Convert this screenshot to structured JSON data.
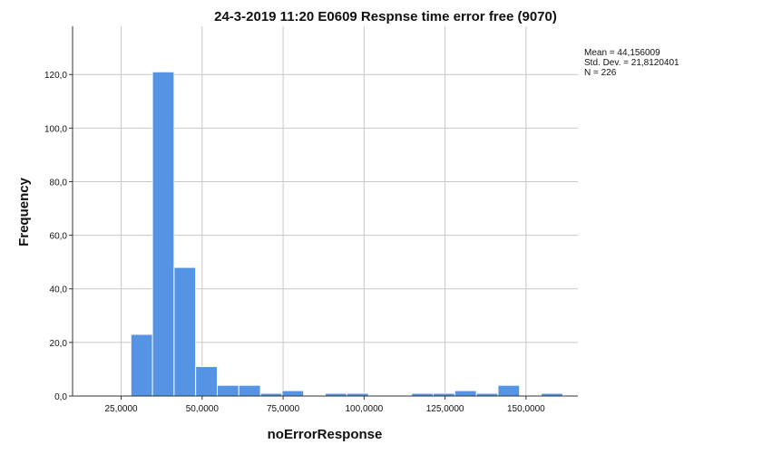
{
  "chart_data": {
    "type": "bar",
    "title": "24-3-2019 11:20 E0609 Respnse time error free (9070)",
    "xlabel": "noErrorResponse",
    "ylabel": "Frequency",
    "colors": {
      "bar": "#5593e4",
      "grid": "#c8c8c8"
    },
    "xlim": [
      10000,
      166000
    ],
    "ylim": [
      0,
      138
    ],
    "x_ticks": [
      25000,
      50000,
      75000,
      100000,
      125000,
      150000
    ],
    "x_tick_labels": [
      "25,0000",
      "50,0000",
      "75,0000",
      "100,0000",
      "125,0000",
      "150,0000"
    ],
    "y_ticks": [
      0,
      20,
      40,
      60,
      80,
      100,
      120
    ],
    "y_tick_labels": [
      "0,0",
      "20,0",
      "40,0",
      "60,0",
      "80,0",
      "100,0",
      "120,0"
    ],
    "bins": [
      {
        "start": 28000,
        "end": 34666,
        "value": 23
      },
      {
        "start": 34666,
        "end": 41333,
        "value": 121
      },
      {
        "start": 41333,
        "end": 48000,
        "value": 48
      },
      {
        "start": 48000,
        "end": 54666,
        "value": 11
      },
      {
        "start": 54666,
        "end": 61333,
        "value": 4
      },
      {
        "start": 61333,
        "end": 68000,
        "value": 4
      },
      {
        "start": 68000,
        "end": 74666,
        "value": 1
      },
      {
        "start": 74666,
        "end": 81333,
        "value": 2
      },
      {
        "start": 81333,
        "end": 88000,
        "value": 0
      },
      {
        "start": 88000,
        "end": 94666,
        "value": 1
      },
      {
        "start": 94666,
        "end": 101333,
        "value": 1
      },
      {
        "start": 101333,
        "end": 108000,
        "value": 0
      },
      {
        "start": 108000,
        "end": 114666,
        "value": 0
      },
      {
        "start": 114666,
        "end": 121333,
        "value": 1
      },
      {
        "start": 121333,
        "end": 128000,
        "value": 1
      },
      {
        "start": 128000,
        "end": 134666,
        "value": 2
      },
      {
        "start": 134666,
        "end": 141333,
        "value": 1
      },
      {
        "start": 141333,
        "end": 148000,
        "value": 4
      },
      {
        "start": 148000,
        "end": 154666,
        "value": 0
      },
      {
        "start": 154666,
        "end": 161333,
        "value": 1
      }
    ],
    "stats": {
      "mean": "Mean = 44,156009",
      "std_dev": "Std. Dev. = 21,8120401",
      "n": "N = 226"
    },
    "grid": true
  }
}
